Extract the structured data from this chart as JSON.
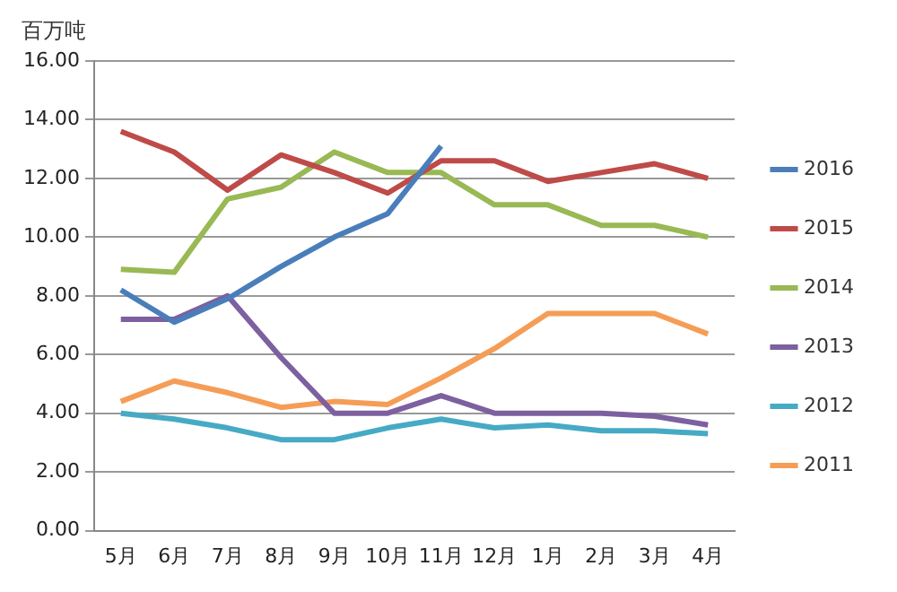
{
  "chart_data": {
    "type": "line",
    "ylabel": "百万吨",
    "categories": [
      "5月",
      "6月",
      "7月",
      "8月",
      "9月",
      "10月",
      "11月",
      "12月",
      "1月",
      "2月",
      "3月",
      "4月"
    ],
    "series": [
      {
        "name": "2016",
        "color": "#4a7ebb",
        "values": [
          8.2,
          7.1,
          7.9,
          9.0,
          10.0,
          10.8,
          13.1,
          null,
          null,
          null,
          null,
          null
        ]
      },
      {
        "name": "2015",
        "color": "#be4b48",
        "values": [
          13.6,
          12.9,
          11.6,
          12.8,
          12.2,
          11.5,
          12.6,
          12.6,
          11.9,
          12.2,
          12.5,
          12.0
        ]
      },
      {
        "name": "2014",
        "color": "#98b954",
        "values": [
          8.9,
          8.8,
          11.3,
          11.7,
          12.9,
          12.2,
          12.2,
          11.1,
          11.1,
          10.4,
          10.4,
          10.0
        ]
      },
      {
        "name": "2013",
        "color": "#7d60a0",
        "values": [
          7.2,
          7.2,
          8.0,
          5.9,
          4.0,
          4.0,
          4.6,
          4.0,
          4.0,
          4.0,
          3.9,
          3.6
        ]
      },
      {
        "name": "2012",
        "color": "#46aac5",
        "values": [
          4.0,
          3.8,
          3.5,
          3.1,
          3.1,
          3.5,
          3.8,
          3.5,
          3.6,
          3.4,
          3.4,
          3.3
        ]
      },
      {
        "name": "2011",
        "color": "#f59d56",
        "values": [
          4.4,
          5.1,
          4.7,
          4.2,
          4.4,
          4.3,
          5.2,
          6.2,
          7.4,
          7.4,
          7.4,
          6.7
        ]
      }
    ],
    "ylim": [
      0,
      16
    ],
    "yticks": [
      {
        "value": 0,
        "label": "0.00"
      },
      {
        "value": 2,
        "label": "2.00"
      },
      {
        "value": 4,
        "label": "4.00"
      },
      {
        "value": 6,
        "label": "6.00"
      },
      {
        "value": 8,
        "label": "8.00"
      },
      {
        "value": 10,
        "label": "10.00"
      },
      {
        "value": 12,
        "label": "12.00"
      },
      {
        "value": 14,
        "label": "14.00"
      },
      {
        "value": 16,
        "label": "16.00"
      }
    ],
    "grid": "y",
    "legend": "right",
    "marker": "none",
    "line_style": "solid"
  }
}
